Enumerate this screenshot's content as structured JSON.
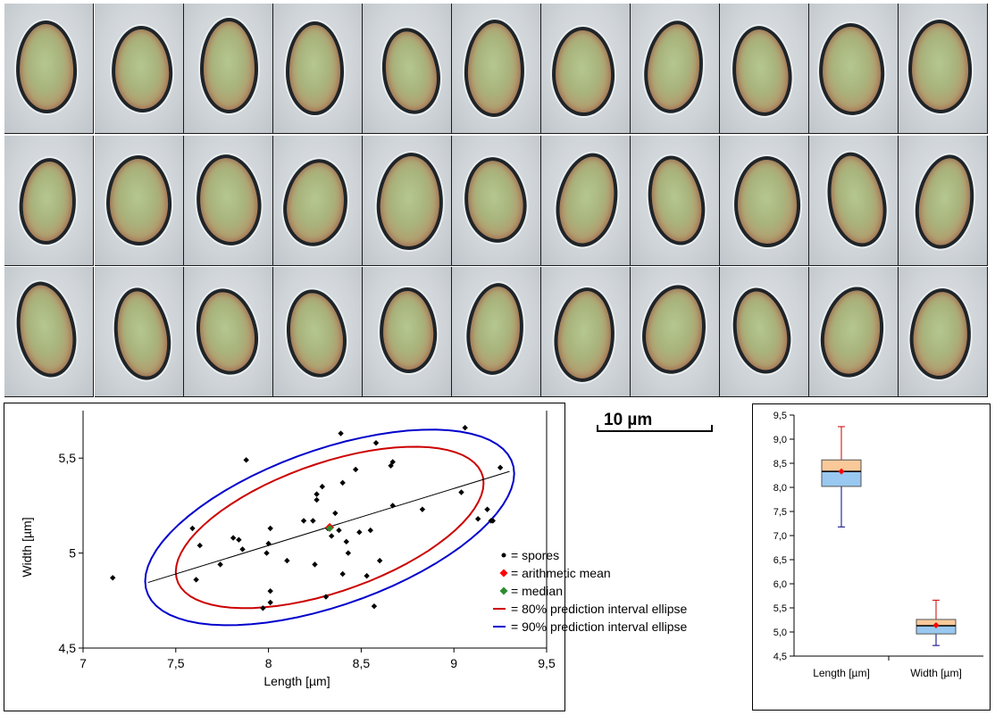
{
  "scale_bar": {
    "label": "10 µm"
  },
  "mosaic": {
    "rows": 3,
    "cols": 11
  },
  "chart_data": [
    {
      "type": "scatter",
      "xlabel": "Length [µm]",
      "ylabel": "Width [µm]",
      "xlim": [
        7,
        9.5
      ],
      "ylim": [
        4.5,
        5.75
      ],
      "xticks": [
        7,
        7.5,
        8,
        8.5,
        9,
        9.5
      ],
      "xtick_labels": [
        "7",
        "7,5",
        "8",
        "8,5",
        "9",
        "9,5"
      ],
      "yticks": [
        4.5,
        5,
        5.5
      ],
      "ytick_labels": [
        "4,5",
        "5",
        "5,5"
      ],
      "colors": {
        "spores": "#000000",
        "mean": "#ff0000",
        "median": "#2e8b2e",
        "ellipse80": "#cc0000",
        "ellipse90": "#0000cc",
        "regression": "#000000"
      },
      "legend": [
        {
          "key": "spores",
          "label": "= spores"
        },
        {
          "key": "mean",
          "label": "= arithmetic mean"
        },
        {
          "key": "median",
          "label": "= median"
        },
        {
          "key": "ellipse80",
          "label": "= 80% prediction interval ellipse"
        },
        {
          "key": "ellipse90",
          "label": "= 90% prediction interval ellipse"
        }
      ],
      "points": [
        [
          7.16,
          4.87
        ],
        [
          7.59,
          5.13
        ],
        [
          7.61,
          4.86
        ],
        [
          7.63,
          5.04
        ],
        [
          7.74,
          4.94
        ],
        [
          7.81,
          5.08
        ],
        [
          7.84,
          5.07
        ],
        [
          7.86,
          5.02
        ],
        [
          7.88,
          5.49
        ],
        [
          7.97,
          4.71
        ],
        [
          7.99,
          5.0
        ],
        [
          8.0,
          5.05
        ],
        [
          8.01,
          4.8
        ],
        [
          8.01,
          4.74
        ],
        [
          8.01,
          5.13
        ],
        [
          8.1,
          4.96
        ],
        [
          8.19,
          5.17
        ],
        [
          8.24,
          5.17
        ],
        [
          8.25,
          4.94
        ],
        [
          8.26,
          5.31
        ],
        [
          8.26,
          5.28
        ],
        [
          8.29,
          5.35
        ],
        [
          8.31,
          4.77
        ],
        [
          8.32,
          5.13
        ],
        [
          8.33,
          5.14
        ],
        [
          8.34,
          5.09
        ],
        [
          8.36,
          5.21
        ],
        [
          8.38,
          5.12
        ],
        [
          8.39,
          5.63
        ],
        [
          8.4,
          4.89
        ],
        [
          8.4,
          5.37
        ],
        [
          8.42,
          5.06
        ],
        [
          8.43,
          5.0
        ],
        [
          8.47,
          5.44
        ],
        [
          8.49,
          5.11
        ],
        [
          8.53,
          4.88
        ],
        [
          8.55,
          5.12
        ],
        [
          8.57,
          4.72
        ],
        [
          8.58,
          5.58
        ],
        [
          8.6,
          4.96
        ],
        [
          8.66,
          5.46
        ],
        [
          8.67,
          5.48
        ],
        [
          8.67,
          5.25
        ],
        [
          8.83,
          5.23
        ],
        [
          9.04,
          5.32
        ],
        [
          9.06,
          5.66
        ],
        [
          9.13,
          5.18
        ],
        [
          9.18,
          5.23
        ],
        [
          9.21,
          5.17
        ],
        [
          9.25,
          5.45
        ],
        [
          9.2,
          5.17
        ]
      ],
      "mean": [
        8.33,
        5.135
      ],
      "median": [
        8.33,
        5.13
      ],
      "regression": [
        [
          7.35,
          4.845
        ],
        [
          9.3,
          5.43
        ]
      ],
      "ellipse80": {
        "center": [
          8.33,
          5.135
        ],
        "x_extent": [
          7.48,
          9.14
        ],
        "y_extent": [
          4.71,
          5.56
        ]
      },
      "ellipse90": {
        "center": [
          8.33,
          5.135
        ],
        "x_extent": [
          7.33,
          9.32
        ],
        "y_extent": [
          4.62,
          5.65
        ]
      }
    },
    {
      "type": "box",
      "categories": [
        "Length [µm]",
        "Width [µm]"
      ],
      "ylim": [
        4.5,
        9.5
      ],
      "yticks": [
        4.5,
        5.0,
        5.5,
        6.0,
        6.5,
        7.0,
        7.5,
        8.0,
        8.5,
        9.0,
        9.5
      ],
      "ytick_labels": [
        "4,5",
        "5,0",
        "5,5",
        "6,0",
        "6,5",
        "7,0",
        "7,5",
        "8,0",
        "8,5",
        "9,0",
        "9,5"
      ],
      "boxes": [
        {
          "min": 7.18,
          "q1": 8.02,
          "median": 8.33,
          "q3": 8.57,
          "max": 9.26,
          "mean": 8.33
        },
        {
          "min": 4.72,
          "q1": 4.96,
          "median": 5.13,
          "q3": 5.26,
          "max": 5.66,
          "mean": 5.14
        }
      ],
      "colors": {
        "upper_box": "#f9c99a",
        "lower_box": "#99c8f0",
        "upper_whisker": "#cc0000",
        "lower_whisker": "#000080",
        "mean": "#ff0000"
      }
    }
  ]
}
